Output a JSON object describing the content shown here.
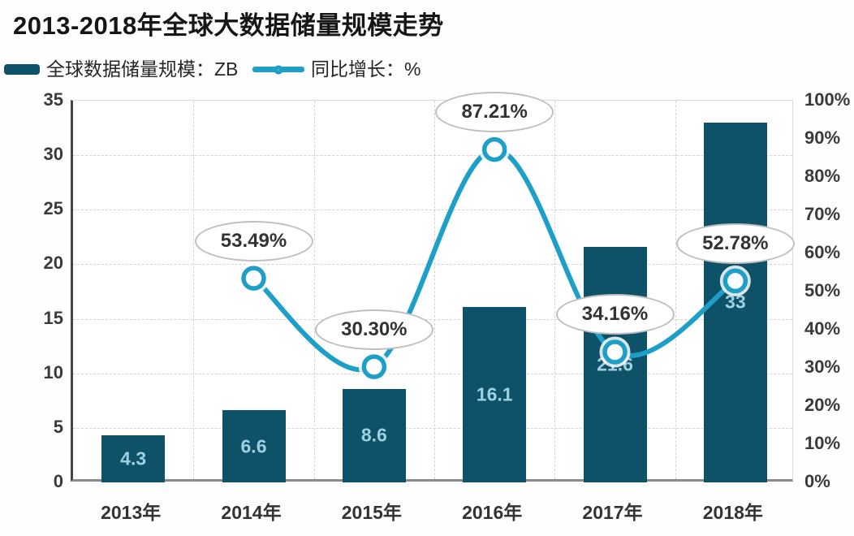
{
  "title": "2013-2018年全球大数据储量规模走势",
  "legend": {
    "bar_label": "全球数据储量规模：ZB",
    "line_label": "同比增长：%"
  },
  "colors": {
    "bar": "#0E5269",
    "line": "#1E9FC7",
    "marker_fill": "#FFFFFF",
    "bar_value_label": "#9FD0E0",
    "axis_text": "#3A3A3A",
    "grid": "#D4D4D4",
    "callout_border": "#BFBFBF",
    "callout_text": "#333333",
    "title_text": "#161616"
  },
  "chart_data": {
    "type": "bar+line combo",
    "title": "2013-2018年全球大数据储量规模走势",
    "categories": [
      "2013年",
      "2014年",
      "2015年",
      "2016年",
      "2017年",
      "2018年"
    ],
    "series": [
      {
        "name": "全球数据储量规模：ZB",
        "type": "bar",
        "axis": "left",
        "values": [
          4.3,
          6.6,
          8.6,
          16.1,
          21.6,
          33
        ],
        "value_labels": [
          "4.3",
          "6.6",
          "8.6",
          "16.1",
          "21.6",
          "33"
        ]
      },
      {
        "name": "同比增长：%",
        "type": "line",
        "axis": "right",
        "smooth": true,
        "values": [
          null,
          53.49,
          30.3,
          87.21,
          34.16,
          52.78
        ],
        "value_labels": [
          null,
          "53.49%",
          "30.30%",
          "87.21%",
          "34.16%",
          "52.78%"
        ]
      }
    ],
    "left_axis": {
      "min": 0,
      "max": 35,
      "step": 5,
      "tick_labels": [
        "0",
        "5",
        "10",
        "15",
        "20",
        "25",
        "30",
        "35"
      ]
    },
    "right_axis": {
      "min": 0,
      "max": 100,
      "step": 10,
      "tick_labels": [
        "0%",
        "10%",
        "20%",
        "30%",
        "40%",
        "50%",
        "60%",
        "70%",
        "80%",
        "90%",
        "100%"
      ]
    },
    "grid": true,
    "legend_position": "top-left"
  }
}
